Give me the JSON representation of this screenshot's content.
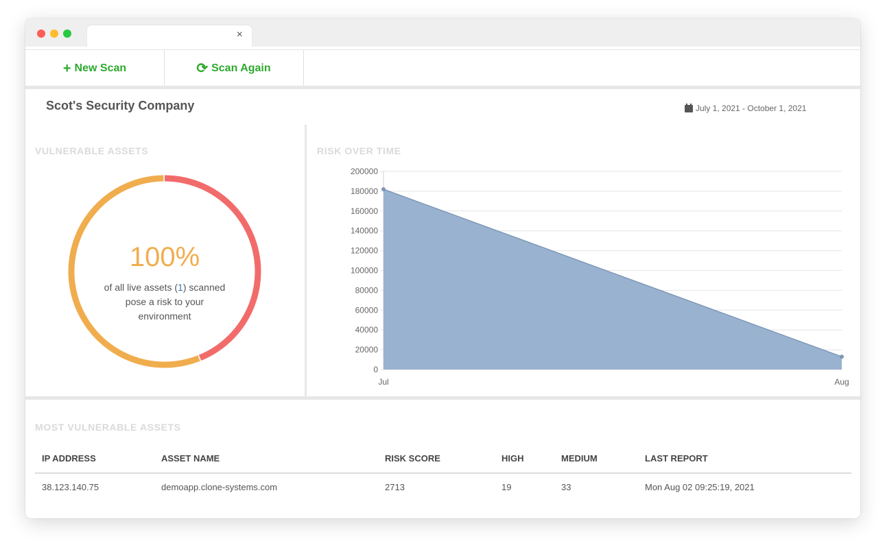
{
  "browser": {
    "tab_close": "×"
  },
  "toolbar": {
    "new_scan_icon": "+",
    "new_scan_label": "New Scan",
    "scan_again_icon": "⟳",
    "scan_again_label": "Scan Again"
  },
  "header": {
    "company": "Scot's Security Company",
    "date_icon": "calendar-icon",
    "date_range": "July 1, 2021 - October 1, 2021"
  },
  "vulnerable_assets": {
    "title": "VULNERABLE ASSETS",
    "percent": "100%",
    "text_before": "of all live assets (",
    "count": "1",
    "text_after": ") scanned pose a risk to your environment",
    "segments": [
      {
        "name": "high",
        "fraction": 0.44,
        "color": "#f26b6b"
      },
      {
        "name": "medium",
        "fraction": 0.56,
        "color": "#f0ad4e"
      }
    ]
  },
  "risk_over_time": {
    "title": "RISK OVER TIME"
  },
  "chart_data": {
    "type": "area",
    "title": "RISK OVER TIME",
    "x": [
      "Jul",
      "Aug"
    ],
    "values": [
      182000,
      13000
    ],
    "ylim": [
      0,
      200000
    ],
    "yticks": [
      "200000",
      "180000",
      "160000",
      "140000",
      "120000",
      "100000",
      "80000",
      "60000",
      "40000",
      "20000",
      "0"
    ],
    "ytick_values": [
      200000,
      180000,
      160000,
      140000,
      120000,
      100000,
      80000,
      60000,
      40000,
      20000,
      0
    ],
    "grid": true,
    "fill_color": "#98b2d0",
    "line_color": "#8099b8"
  },
  "most_vulnerable": {
    "title": "MOST VULNERABLE ASSETS",
    "columns": [
      "IP ADDRESS",
      "ASSET NAME",
      "RISK SCORE",
      "HIGH",
      "MEDIUM",
      "LAST REPORT"
    ],
    "rows": [
      [
        "38.123.140.75",
        "demoapp.clone-systems.com",
        "2713",
        "19",
        "33",
        "Mon Aug 02 09:25:19, 2021"
      ]
    ]
  }
}
